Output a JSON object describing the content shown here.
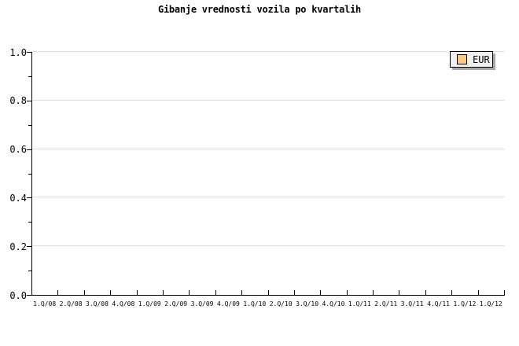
{
  "title": "Gibanje vrednosti vozila po kvartalih",
  "legend": {
    "items": [
      {
        "label": "EUR",
        "swatch_color": "#faca7e"
      }
    ]
  },
  "colors": {
    "background": "#ffffff",
    "axis": "#000000",
    "grid": "#dedede",
    "legend_bg": "#f0f0f0",
    "legend_border": "#000000",
    "legend_shadow": "#a8a8a8",
    "swatch_fill": "#faca7e",
    "swatch_border": "#000000",
    "text": "#000000"
  },
  "chart_data": {
    "type": "line",
    "title": "Gibanje vrednosti vozila po kvartalih",
    "categories": [
      "1.Q/08",
      "2.Q/08",
      "3.Q/08",
      "4.Q/08",
      "1.Q/09",
      "2.Q/09",
      "3.Q/09",
      "4.Q/09",
      "1.Q/10",
      "2.Q/10",
      "3.Q/10",
      "4.Q/10",
      "1.Q/11",
      "2.Q/11",
      "3.Q/11",
      "4.Q/11",
      "1.Q/12",
      "1.Q/12"
    ],
    "series": [
      {
        "name": "EUR",
        "color": "#faca7e",
        "values": []
      }
    ],
    "xlabel": "",
    "ylabel": "",
    "ylim": [
      0.0,
      1.0
    ],
    "yticks": [
      0.0,
      0.2,
      0.4,
      0.6,
      0.8,
      1.0
    ],
    "ytick_labels": [
      "0.0",
      "0.2",
      "0.4",
      "0.6",
      "0.8",
      "1.0"
    ],
    "minor_yticks": [
      0.1,
      0.3,
      0.5,
      0.7,
      0.9
    ],
    "grid": true,
    "legend_position": "top-right"
  }
}
